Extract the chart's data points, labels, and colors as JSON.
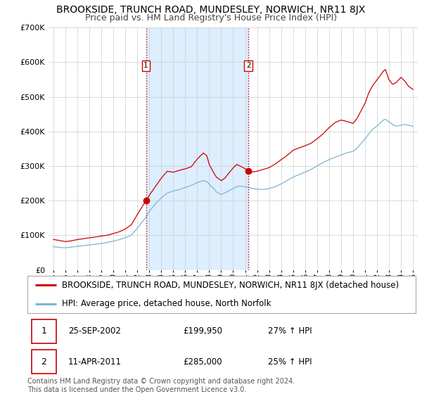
{
  "title": "BROOKSIDE, TRUNCH ROAD, MUNDESLEY, NORWICH, NR11 8JX",
  "subtitle": "Price paid vs. HM Land Registry's House Price Index (HPI)",
  "ylim": [
    0,
    700000
  ],
  "yticks": [
    0,
    100000,
    200000,
    300000,
    400000,
    500000,
    600000,
    700000
  ],
  "ytick_labels": [
    "£0",
    "£100K",
    "£200K",
    "£300K",
    "£400K",
    "£500K",
    "£600K",
    "£700K"
  ],
  "xlim_start": 1994.6,
  "xlim_end": 2025.4,
  "sale1_date": 2002.73,
  "sale1_price": 199950,
  "sale2_date": 2011.28,
  "sale2_price": 285000,
  "sale1_hpi_label": "25-SEP-2002",
  "sale1_price_label": "£199,950",
  "sale1_pct_label": "27% ↑ HPI",
  "sale2_hpi_label": "11-APR-2011",
  "sale2_price_label": "£285,000",
  "sale2_pct_label": "25% ↑ HPI",
  "shaded_region_start": 2002.73,
  "shaded_region_end": 2011.28,
  "red_line_color": "#cc0000",
  "blue_line_color": "#7fb3d3",
  "shaded_color": "#ddeeff",
  "grid_color": "#cccccc",
  "background_color": "#ffffff",
  "legend_label_red": "BROOKSIDE, TRUNCH ROAD, MUNDESLEY, NORWICH, NR11 8JX (detached house)",
  "legend_label_blue": "HPI: Average price, detached house, North Norfolk",
  "footer_text": "Contains HM Land Registry data © Crown copyright and database right 2024.\nThis data is licensed under the Open Government Licence v3.0.",
  "title_fontsize": 10,
  "subtitle_fontsize": 9,
  "tick_fontsize": 8,
  "legend_fontsize": 8.5,
  "footer_fontsize": 7,
  "red_waypoints": [
    [
      1995.0,
      88000
    ],
    [
      1995.5,
      85000
    ],
    [
      1996.0,
      82000
    ],
    [
      1996.5,
      84000
    ],
    [
      1997.0,
      88000
    ],
    [
      1997.5,
      90000
    ],
    [
      1998.0,
      93000
    ],
    [
      1998.5,
      95000
    ],
    [
      1999.0,
      98000
    ],
    [
      1999.5,
      100000
    ],
    [
      2000.0,
      105000
    ],
    [
      2000.5,
      110000
    ],
    [
      2001.0,
      118000
    ],
    [
      2001.5,
      130000
    ],
    [
      2002.0,
      160000
    ],
    [
      2002.73,
      199950
    ],
    [
      2003.0,
      215000
    ],
    [
      2003.5,
      240000
    ],
    [
      2004.0,
      265000
    ],
    [
      2004.5,
      285000
    ],
    [
      2005.0,
      282000
    ],
    [
      2005.5,
      288000
    ],
    [
      2006.0,
      292000
    ],
    [
      2006.5,
      298000
    ],
    [
      2007.0,
      320000
    ],
    [
      2007.5,
      338000
    ],
    [
      2007.8,
      330000
    ],
    [
      2008.0,
      305000
    ],
    [
      2008.3,
      285000
    ],
    [
      2008.6,
      268000
    ],
    [
      2009.0,
      258000
    ],
    [
      2009.3,
      265000
    ],
    [
      2009.6,
      278000
    ],
    [
      2010.0,
      295000
    ],
    [
      2010.3,
      305000
    ],
    [
      2010.6,
      300000
    ],
    [
      2011.0,
      292000
    ],
    [
      2011.28,
      285000
    ],
    [
      2011.5,
      282000
    ],
    [
      2012.0,
      285000
    ],
    [
      2012.5,
      290000
    ],
    [
      2013.0,
      295000
    ],
    [
      2013.5,
      305000
    ],
    [
      2014.0,
      318000
    ],
    [
      2014.5,
      330000
    ],
    [
      2015.0,
      345000
    ],
    [
      2015.5,
      352000
    ],
    [
      2016.0,
      358000
    ],
    [
      2016.5,
      365000
    ],
    [
      2017.0,
      378000
    ],
    [
      2017.5,
      392000
    ],
    [
      2018.0,
      410000
    ],
    [
      2018.5,
      425000
    ],
    [
      2019.0,
      432000
    ],
    [
      2019.5,
      428000
    ],
    [
      2020.0,
      422000
    ],
    [
      2020.3,
      435000
    ],
    [
      2020.6,
      455000
    ],
    [
      2021.0,
      480000
    ],
    [
      2021.3,
      510000
    ],
    [
      2021.6,
      530000
    ],
    [
      2022.0,
      548000
    ],
    [
      2022.3,
      562000
    ],
    [
      2022.5,
      572000
    ],
    [
      2022.7,
      578000
    ],
    [
      2023.0,
      548000
    ],
    [
      2023.3,
      535000
    ],
    [
      2023.6,
      540000
    ],
    [
      2024.0,
      555000
    ],
    [
      2024.3,
      545000
    ],
    [
      2024.6,
      530000
    ],
    [
      2025.0,
      520000
    ]
  ],
  "blue_waypoints": [
    [
      1995.0,
      67000
    ],
    [
      1995.5,
      65000
    ],
    [
      1996.0,
      64000
    ],
    [
      1996.5,
      66000
    ],
    [
      1997.0,
      68000
    ],
    [
      1997.5,
      70000
    ],
    [
      1998.0,
      72000
    ],
    [
      1998.5,
      74000
    ],
    [
      1999.0,
      76000
    ],
    [
      1999.5,
      79000
    ],
    [
      2000.0,
      83000
    ],
    [
      2000.5,
      87000
    ],
    [
      2001.0,
      93000
    ],
    [
      2001.5,
      100000
    ],
    [
      2002.0,
      120000
    ],
    [
      2002.73,
      152000
    ],
    [
      2003.0,
      168000
    ],
    [
      2003.5,
      190000
    ],
    [
      2004.0,
      208000
    ],
    [
      2004.5,
      222000
    ],
    [
      2005.0,
      228000
    ],
    [
      2005.5,
      232000
    ],
    [
      2006.0,
      238000
    ],
    [
      2006.5,
      244000
    ],
    [
      2007.0,
      252000
    ],
    [
      2007.5,
      258000
    ],
    [
      2007.8,
      255000
    ],
    [
      2008.0,
      248000
    ],
    [
      2008.3,
      238000
    ],
    [
      2008.6,
      225000
    ],
    [
      2009.0,
      218000
    ],
    [
      2009.3,
      222000
    ],
    [
      2009.6,
      228000
    ],
    [
      2010.0,
      235000
    ],
    [
      2010.3,
      240000
    ],
    [
      2010.6,
      242000
    ],
    [
      2011.0,
      240000
    ],
    [
      2011.28,
      238000
    ],
    [
      2011.5,
      236000
    ],
    [
      2012.0,
      233000
    ],
    [
      2012.5,
      232000
    ],
    [
      2013.0,
      235000
    ],
    [
      2013.5,
      240000
    ],
    [
      2014.0,
      248000
    ],
    [
      2014.5,
      258000
    ],
    [
      2015.0,
      268000
    ],
    [
      2015.5,
      275000
    ],
    [
      2016.0,
      282000
    ],
    [
      2016.5,
      290000
    ],
    [
      2017.0,
      300000
    ],
    [
      2017.5,
      310000
    ],
    [
      2018.0,
      318000
    ],
    [
      2018.5,
      325000
    ],
    [
      2019.0,
      332000
    ],
    [
      2019.5,
      338000
    ],
    [
      2020.0,
      342000
    ],
    [
      2020.3,
      350000
    ],
    [
      2020.6,
      362000
    ],
    [
      2021.0,
      378000
    ],
    [
      2021.3,
      392000
    ],
    [
      2021.6,
      405000
    ],
    [
      2022.0,
      415000
    ],
    [
      2022.3,
      425000
    ],
    [
      2022.5,
      432000
    ],
    [
      2022.7,
      435000
    ],
    [
      2023.0,
      428000
    ],
    [
      2023.3,
      420000
    ],
    [
      2023.6,
      415000
    ],
    [
      2024.0,
      418000
    ],
    [
      2024.3,
      420000
    ],
    [
      2024.6,
      418000
    ],
    [
      2025.0,
      415000
    ]
  ]
}
